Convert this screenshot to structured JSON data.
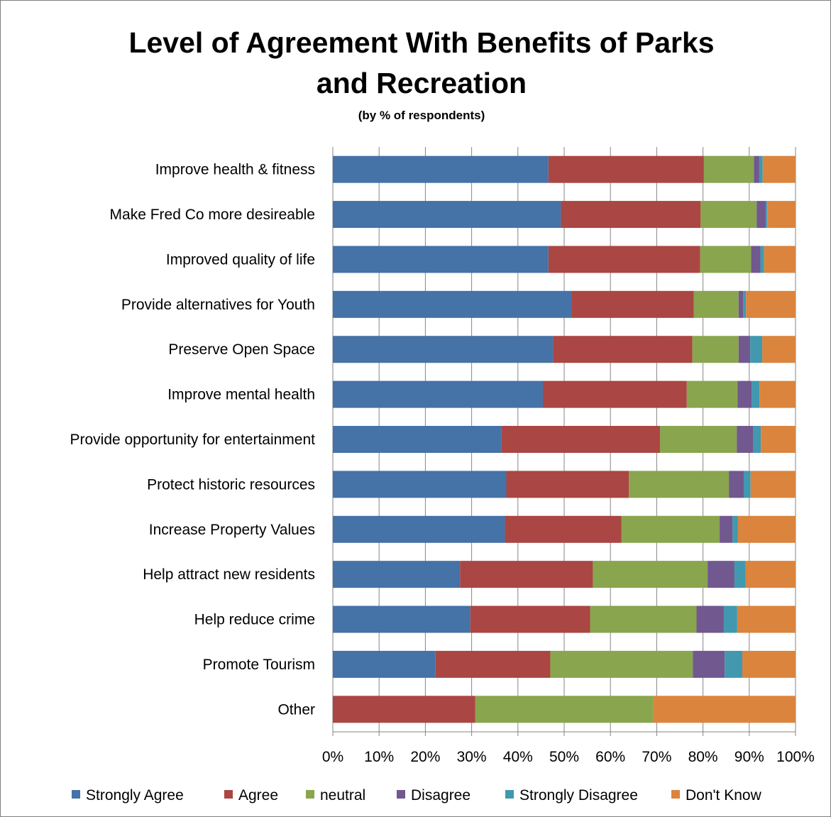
{
  "chart_data": {
    "type": "bar",
    "orientation": "horizontal",
    "stacked": "percent",
    "title_lines": [
      "Level of Agreement With Benefits of Parks",
      "and Recreation"
    ],
    "subtitle": "(by % of respondents)",
    "categories": [
      "Improve health & fitness",
      "Make Fred Co more desireable",
      "Improved quality of life",
      "Provide alternatives for Youth",
      "Preserve Open Space",
      "Improve mental health",
      "Provide opportunity for entertainment",
      "Protect historic resources",
      "Increase Property Values",
      "Help attract new residents",
      "Help reduce crime",
      "Promote Tourism",
      "Other"
    ],
    "series": [
      {
        "name": "Strongly Agree",
        "color": "#4572A7",
        "values": [
          46.6,
          49.3,
          46.6,
          51.6,
          47.6,
          45.4,
          36.4,
          37.5,
          37.2,
          27.5,
          29.7,
          22.2,
          0
        ]
      },
      {
        "name": "Agree",
        "color": "#AA4643",
        "values": [
          33.6,
          30.2,
          32.8,
          26.4,
          30.1,
          31.1,
          34.3,
          26.5,
          25.2,
          28.7,
          25.9,
          24.8,
          30.8
        ]
      },
      {
        "name": "neutral",
        "color": "#89A54E",
        "values": [
          10.8,
          12.1,
          11.0,
          9.7,
          10.0,
          11.0,
          16.6,
          21.6,
          21.2,
          24.8,
          23.0,
          30.8,
          38.5
        ]
      },
      {
        "name": "Disagree",
        "color": "#71588F",
        "values": [
          1.1,
          2.0,
          2.0,
          1.0,
          2.5,
          3.0,
          3.5,
          3.2,
          2.8,
          5.8,
          5.9,
          6.9,
          0
        ]
      },
      {
        "name": "Strongly Disagree",
        "color": "#4198AF",
        "values": [
          0.8,
          0.3,
          0.8,
          0.6,
          2.6,
          1.7,
          1.7,
          1.5,
          1.1,
          2.4,
          2.9,
          3.8,
          0
        ]
      },
      {
        "name": "Don't Know",
        "color": "#DB843D",
        "values": [
          7.1,
          6.1,
          6.8,
          10.7,
          7.2,
          7.8,
          7.5,
          9.7,
          12.5,
          10.8,
          12.6,
          11.5,
          30.7
        ]
      }
    ],
    "xticks": [
      "0%",
      "10%",
      "20%",
      "30%",
      "40%",
      "50%",
      "60%",
      "70%",
      "80%",
      "90%",
      "100%"
    ],
    "xlim": [
      0,
      100
    ],
    "grid": "vertical",
    "legend": "bottom"
  }
}
